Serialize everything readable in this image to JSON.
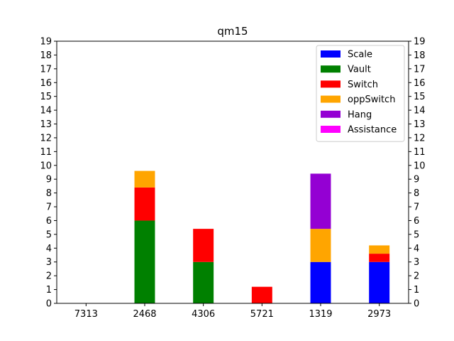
{
  "chart_data": {
    "type": "bar",
    "stacked": true,
    "title": "qm15",
    "xlabel": "",
    "ylabel": "",
    "categories": [
      "7313",
      "2468",
      "4306",
      "5721",
      "1319",
      "2973"
    ],
    "series": [
      {
        "name": "Scale",
        "color": "#0000ff",
        "values": [
          0,
          0,
          0,
          0,
          3,
          3
        ]
      },
      {
        "name": "Vault",
        "color": "#008000",
        "values": [
          0,
          6,
          3,
          0,
          0,
          0
        ]
      },
      {
        "name": "Switch",
        "color": "#ff0000",
        "values": [
          0,
          2.4,
          2.4,
          1.2,
          0,
          0.6
        ]
      },
      {
        "name": "oppSwitch",
        "color": "#ffa500",
        "values": [
          0,
          1.2,
          0,
          0,
          2.4,
          0.6
        ]
      },
      {
        "name": "Hang",
        "color": "#9400d3",
        "values": [
          0,
          0,
          0,
          0,
          4,
          0
        ]
      },
      {
        "name": "Assistance",
        "color": "#ff00ff",
        "values": [
          0,
          0,
          0,
          0,
          0,
          0
        ]
      }
    ],
    "ylim": [
      0,
      19
    ],
    "yticks": [
      0,
      1,
      2,
      3,
      4,
      5,
      6,
      7,
      8,
      9,
      10,
      11,
      12,
      13,
      14,
      15,
      16,
      17,
      18,
      19
    ],
    "right_axis_ticks": true,
    "grid": false,
    "legend_position": "upper right"
  }
}
